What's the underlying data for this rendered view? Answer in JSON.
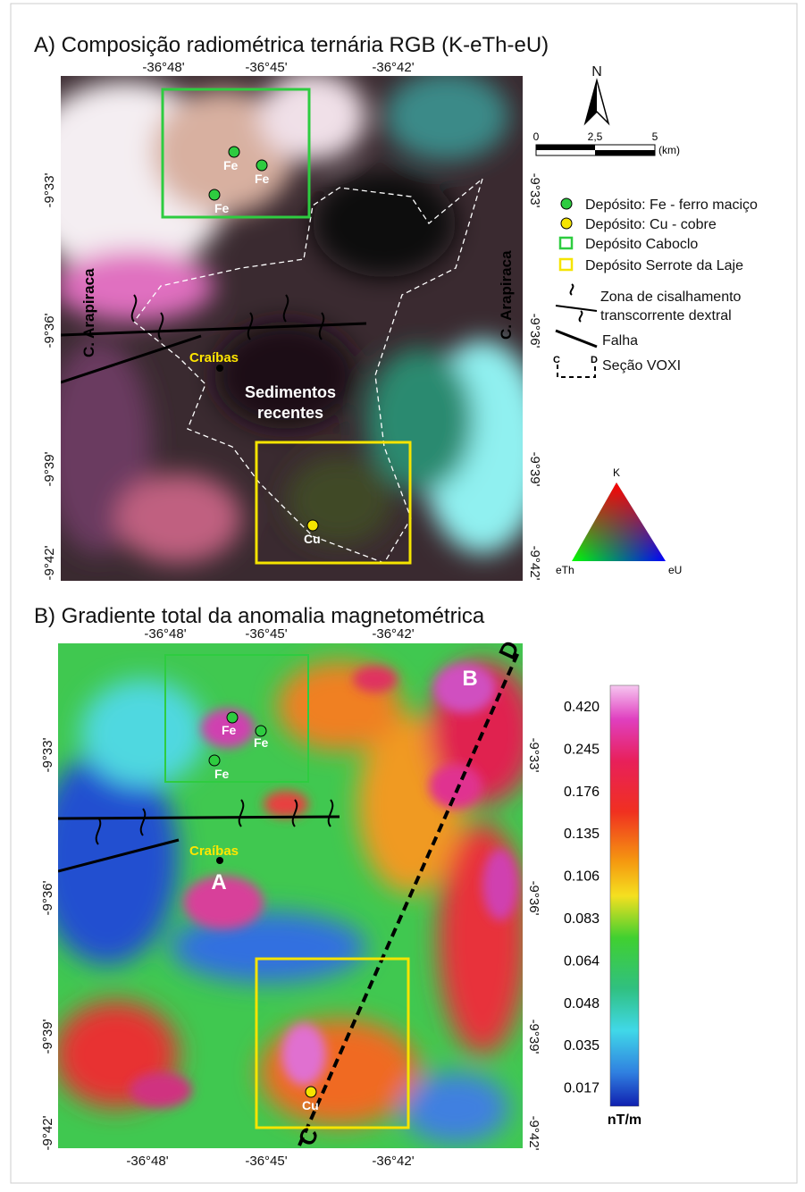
{
  "panel_a": {
    "title": "A) Composição radiométrica ternária RGB (K-eTh-eU)",
    "longitude_labels": [
      "-36°48'",
      "-36°45'",
      "-36°42'"
    ],
    "latitude_labels": [
      "-9°33'",
      "-9°36'",
      "-9°39'",
      "-9°42'"
    ],
    "map_labels": {
      "iron": "Fe",
      "copper": "Cu",
      "town": "Craíbas",
      "sediments": [
        "Sedimentos",
        "recentes"
      ],
      "arapiraca": "C. Arapiraca"
    },
    "ternary": {
      "top": "K",
      "left": "eTh",
      "right": "eU"
    }
  },
  "north": "N",
  "scale": {
    "ticks": [
      "0",
      "2,5",
      "5"
    ],
    "unit": "(km)"
  },
  "legend": {
    "iron": "Depósito: Fe - ferro maciço",
    "copper": "Depósito: Cu - cobre",
    "caboclo": "Depósito Caboclo",
    "serrote": "Depósito Serrote da Laje",
    "shear": [
      "Zona de cisalhamento",
      "transcorrente dextral"
    ],
    "fault": "Falha",
    "section": {
      "start": "C",
      "end": "D",
      "label": "Seção VOXI"
    }
  },
  "panel_b": {
    "title": "B) Gradiente total da anomalia magnetométrica",
    "longitude_labels": [
      "-36°48'",
      "-36°45'",
      "-36°42'"
    ],
    "latitude_labels": [
      "-9°33'",
      "-9°36'",
      "-9°39'",
      "-9°42'"
    ],
    "map_labels": {
      "iron": "Fe",
      "copper": "Cu",
      "town": "Craíbas",
      "anomaly_a": "A",
      "anomaly_b": "B",
      "section_start": "C",
      "section_end": "D"
    },
    "colorbar": {
      "labels": [
        "0.420",
        "0.245",
        "0.176",
        "0.135",
        "0.106",
        "0.083",
        "0.064",
        "0.048",
        "0.035",
        "0.017"
      ],
      "unit": "nT/m"
    }
  }
}
